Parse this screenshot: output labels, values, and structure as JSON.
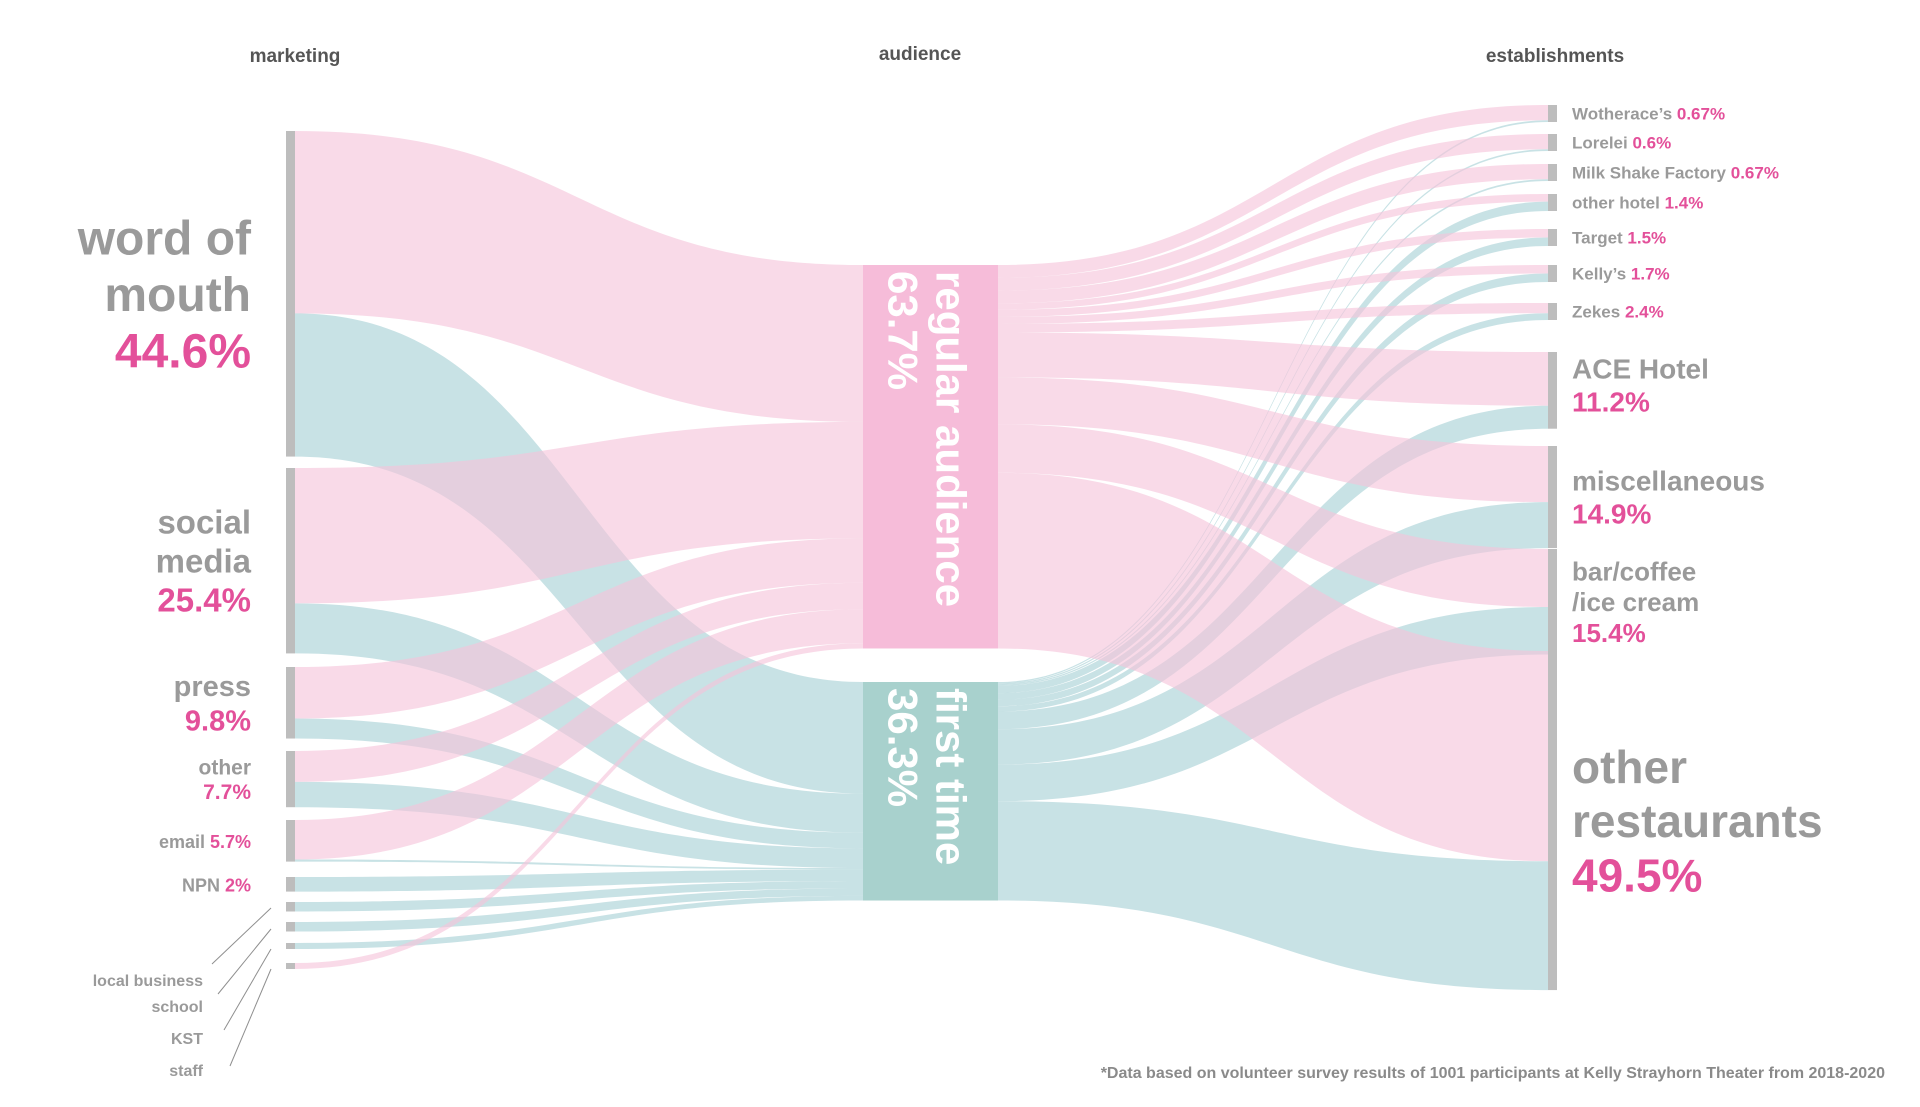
{
  "chart_data": {
    "type": "sankey",
    "columns": [
      "marketing",
      "audience",
      "establishments"
    ],
    "colors": {
      "regular": "#f5c3da",
      "first": "#a6d1d5",
      "regular_node": "#f6bcd9",
      "first_node": "#a8d1cd",
      "node_bar": "#bdbdbd",
      "label_gray": "#9a9a9a",
      "percent_pink": "#e3509a"
    },
    "sources": [
      {
        "name": "word of mouth",
        "name_lines": [
          "word of",
          "mouth"
        ],
        "percent": "44.6%",
        "value": 44.6,
        "regular_share": 0.56
      },
      {
        "name": "social media",
        "name_lines": [
          "social",
          "media"
        ],
        "percent": "25.4%",
        "value": 25.4,
        "regular_share": 0.73
      },
      {
        "name": "press",
        "name_lines": [
          "press"
        ],
        "percent": "9.8%",
        "value": 9.8,
        "regular_share": 0.72
      },
      {
        "name": "other",
        "name_lines": [
          "other"
        ],
        "percent": "7.7%",
        "value": 7.7,
        "regular_share": 0.55
      },
      {
        "name": "email",
        "name_lines": [
          "email"
        ],
        "percent": "5.7%",
        "value": 5.7,
        "regular_share": 0.95
      },
      {
        "name": "NPN",
        "name_lines": [
          "NPN"
        ],
        "percent": "2%",
        "value": 2.0,
        "regular_share": 0.0
      },
      {
        "name": "local business",
        "name_lines": [
          "local business"
        ],
        "percent": "",
        "value": 1.3,
        "regular_share": 0.0
      },
      {
        "name": "school",
        "name_lines": [
          "school"
        ],
        "percent": "",
        "value": 1.3,
        "regular_share": 0.0
      },
      {
        "name": "KST",
        "name_lines": [
          "KST"
        ],
        "percent": "",
        "value": 0.8,
        "regular_share": 0.0
      },
      {
        "name": "staff",
        "name_lines": [
          "staff"
        ],
        "percent": "",
        "value": 0.8,
        "regular_share": 1.0
      }
    ],
    "audience": [
      {
        "name": "regular audience",
        "percent": "63.7%",
        "value": 63.7
      },
      {
        "name": "first time",
        "percent": "36.3%",
        "value": 36.3
      }
    ],
    "targets": [
      {
        "name": "Wotherace’s",
        "percent": "0.67%",
        "value": 0.67,
        "regular_share": 0.9
      },
      {
        "name": "Lorelei",
        "percent": "0.6%",
        "value": 0.6,
        "regular_share": 0.9
      },
      {
        "name": "Milk Shake Factory",
        "percent": "0.67%",
        "value": 0.67,
        "regular_share": 0.9
      },
      {
        "name": "other hotel",
        "percent": "1.4%",
        "value": 1.4,
        "regular_share": 0.45
      },
      {
        "name": "Target",
        "percent": "1.5%",
        "value": 1.5,
        "regular_share": 0.5
      },
      {
        "name": "Kelly’s",
        "percent": "1.7%",
        "value": 1.7,
        "regular_share": 0.5
      },
      {
        "name": "Zekes",
        "percent": "2.4%",
        "value": 2.4,
        "regular_share": 0.6
      },
      {
        "name": "ACE Hotel",
        "percent": "11.2%",
        "value": 11.2,
        "regular_share": 0.7
      },
      {
        "name": "miscellaneous",
        "percent": "14.9%",
        "value": 14.9,
        "regular_share": 0.55
      },
      {
        "name": "bar/coffee /ice cream",
        "name_lines": [
          "bar/coffee",
          "/ice cream"
        ],
        "percent": "15.4%",
        "value": 15.4,
        "regular_share": 0.55
      },
      {
        "name": "other restaurants",
        "name_lines": [
          "other",
          "restaurants"
        ],
        "percent": "49.5%",
        "value": 49.5,
        "regular_share": 0.62
      }
    ]
  },
  "footnote": "*Data based on volunteer survey results of 1001 participants at Kelly Strayhorn Theater from 2018-2020"
}
